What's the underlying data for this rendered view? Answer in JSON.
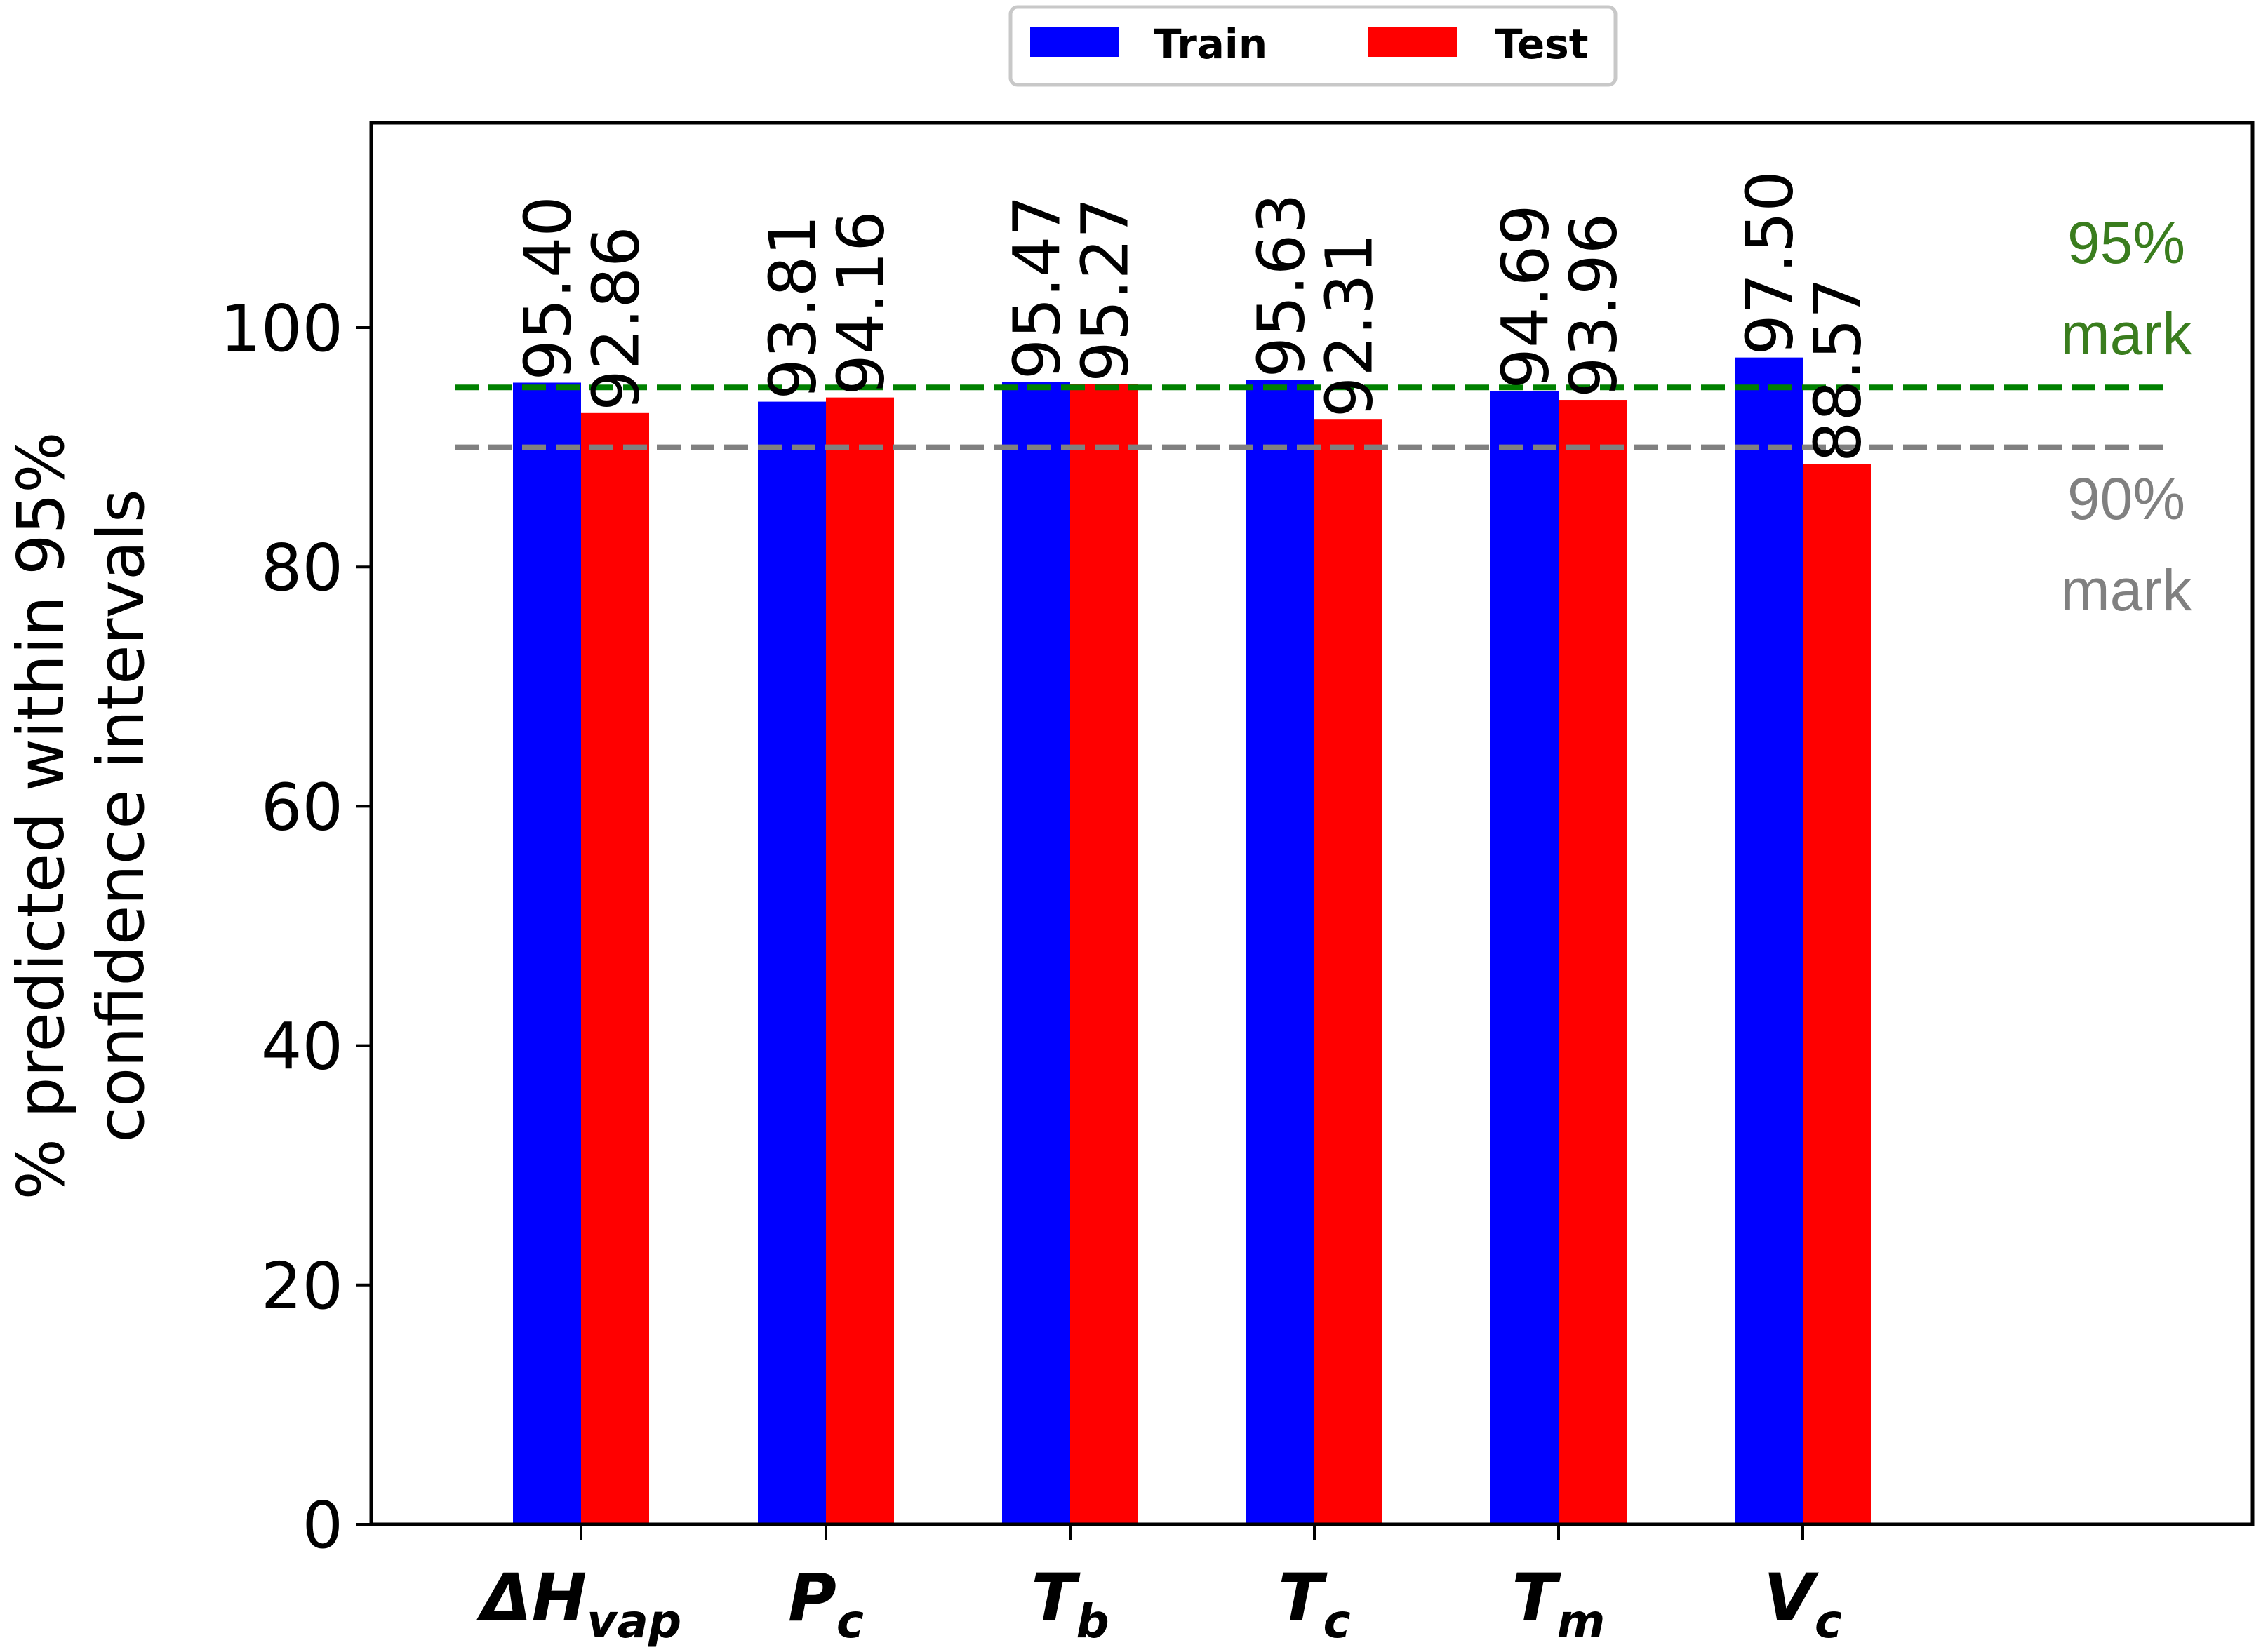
{
  "chart_data": {
    "type": "bar",
    "categories": [
      {
        "main": "ΔH",
        "sub": "vap"
      },
      {
        "main": "P",
        "sub": "c"
      },
      {
        "main": "T",
        "sub": "b"
      },
      {
        "main": "T",
        "sub": "c"
      },
      {
        "main": "T",
        "sub": "m"
      },
      {
        "main": "V",
        "sub": "c"
      }
    ],
    "series": [
      {
        "name": "Train",
        "color": "#0000ff",
        "values": [
          95.4,
          93.81,
          95.47,
          95.63,
          94.69,
          97.5
        ],
        "labels": [
          "95.40",
          "93.81",
          "95.47",
          "95.63",
          "94.69",
          "97.50"
        ]
      },
      {
        "name": "Test",
        "color": "#ff0000",
        "values": [
          92.86,
          94.16,
          95.27,
          92.31,
          93.96,
          88.57
        ],
        "labels": [
          "92.86",
          "94.16",
          "95.27",
          "92.31",
          "93.96",
          "88.57"
        ]
      }
    ],
    "ylabel_lines": [
      "% predicted within 95%",
      "confidence intervals"
    ],
    "xlabel": "",
    "ylim": [
      0,
      117
    ],
    "yticks": [
      0,
      20,
      40,
      60,
      80,
      100
    ],
    "reference_lines": [
      {
        "value": 95,
        "color": "#008000",
        "label_lines": [
          "95%",
          "mark"
        ],
        "label_color": "#3a7d1e"
      },
      {
        "value": 90,
        "color": "#808080",
        "label_lines": [
          "90%",
          "mark"
        ],
        "label_color": "#808080"
      }
    ],
    "legend_position": "top-center",
    "grid": false
  }
}
